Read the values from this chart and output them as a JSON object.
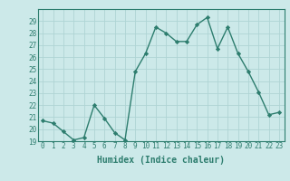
{
  "x": [
    0,
    1,
    2,
    3,
    4,
    5,
    6,
    7,
    8,
    9,
    10,
    11,
    12,
    13,
    14,
    15,
    16,
    17,
    18,
    19,
    20,
    21,
    22,
    23
  ],
  "y": [
    20.7,
    20.5,
    19.8,
    19.1,
    19.3,
    22.0,
    20.9,
    19.7,
    19.1,
    24.8,
    26.3,
    28.5,
    28.0,
    27.3,
    27.3,
    28.7,
    29.3,
    26.7,
    28.5,
    26.3,
    24.8,
    23.1,
    21.2,
    21.4
  ],
  "xlabel": "Humidex (Indice chaleur)",
  "xlim": [
    -0.5,
    23.5
  ],
  "ylim": [
    19,
    30
  ],
  "yticks": [
    19,
    20,
    21,
    22,
    23,
    24,
    25,
    26,
    27,
    28,
    29
  ],
  "xticks": [
    0,
    1,
    2,
    3,
    4,
    5,
    6,
    7,
    8,
    9,
    10,
    11,
    12,
    13,
    14,
    15,
    16,
    17,
    18,
    19,
    20,
    21,
    22,
    23
  ],
  "line_color": "#2d7d6e",
  "marker_color": "#2d7d6e",
  "bg_color": "#cce9e9",
  "grid_color": "#afd4d4",
  "spine_color": "#2d7d6e",
  "tick_fontsize": 5.5,
  "xlabel_fontsize": 7.0,
  "linewidth": 1.0,
  "markersize": 2.2
}
